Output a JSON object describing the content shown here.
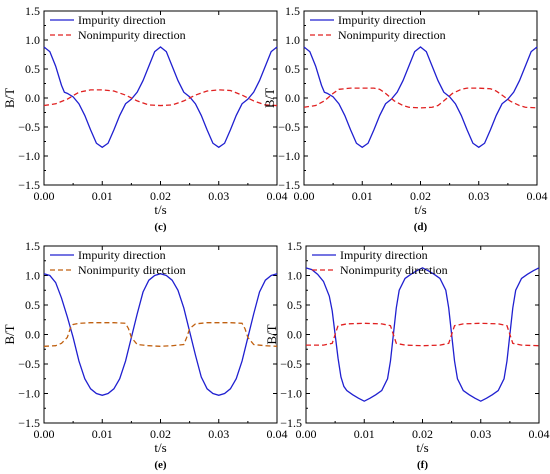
{
  "chart_data": [
    {
      "panel": "(c)",
      "type": "line",
      "xlabel": "t/s",
      "ylabel": "B/T",
      "xlim": [
        0,
        0.04
      ],
      "ylim": [
        -1.5,
        1.5
      ],
      "xticks": [
        "0.00",
        "0.01",
        "0.02",
        "0.03",
        "0.04"
      ],
      "yticks": [
        "-1.5",
        "-1.0",
        "-0.5",
        "0.0",
        "0.5",
        "1.0",
        "1.5"
      ],
      "legend_position": "top-left",
      "series": [
        {
          "name": "Impurity direction",
          "color": "#2020d0",
          "dash": "solid",
          "x": [
            0,
            0.001,
            0.002,
            0.003,
            0.0035,
            0.004,
            0.005,
            0.006,
            0.007,
            0.008,
            0.009,
            0.01,
            0.011,
            0.012,
            0.013,
            0.014,
            0.015,
            0.016,
            0.017,
            0.018,
            0.019,
            0.02,
            0.021,
            0.022,
            0.023,
            0.024,
            0.025,
            0.026,
            0.027,
            0.028,
            0.029,
            0.03,
            0.031,
            0.032,
            0.033,
            0.034,
            0.035,
            0.036,
            0.037,
            0.038,
            0.039,
            0.04
          ],
          "y": [
            0.88,
            0.8,
            0.55,
            0.22,
            0.1,
            0.08,
            0.02,
            -0.1,
            -0.3,
            -0.55,
            -0.78,
            -0.85,
            -0.78,
            -0.55,
            -0.3,
            -0.1,
            -0.02,
            0.1,
            0.3,
            0.55,
            0.8,
            0.88,
            0.8,
            0.55,
            0.3,
            0.1,
            0.02,
            -0.1,
            -0.3,
            -0.55,
            -0.78,
            -0.85,
            -0.78,
            -0.55,
            -0.3,
            -0.1,
            -0.02,
            0.1,
            0.3,
            0.55,
            0.8,
            0.88
          ]
        },
        {
          "name": "Nonimpurity direction",
          "color": "#e02020",
          "dash": "dashed",
          "x": [
            0,
            0.002,
            0.004,
            0.006,
            0.008,
            0.01,
            0.012,
            0.014,
            0.016,
            0.018,
            0.02,
            0.022,
            0.024,
            0.026,
            0.028,
            0.03,
            0.032,
            0.034,
            0.036,
            0.038,
            0.04
          ],
          "y": [
            -0.13,
            -0.1,
            -0.02,
            0.1,
            0.14,
            0.14,
            0.12,
            0.05,
            -0.05,
            -0.12,
            -0.13,
            -0.12,
            -0.05,
            0.05,
            0.12,
            0.14,
            0.13,
            0.05,
            -0.05,
            -0.12,
            -0.13
          ]
        }
      ]
    },
    {
      "panel": "(d)",
      "type": "line",
      "xlabel": "t/s",
      "ylabel": "B/T",
      "xlim": [
        0,
        0.04
      ],
      "ylim": [
        -1.5,
        1.5
      ],
      "xticks": [
        "0.00",
        "0.01",
        "0.02",
        "0.03",
        "0.04"
      ],
      "yticks": [
        "-1.5",
        "-1.0",
        "-0.5",
        "0.0",
        "0.5",
        "1.0",
        "1.5"
      ],
      "legend_position": "top-left",
      "series": [
        {
          "name": "Impurity direction",
          "color": "#2020d0",
          "dash": "solid",
          "x": [
            0,
            0.001,
            0.002,
            0.003,
            0.0035,
            0.004,
            0.005,
            0.006,
            0.007,
            0.008,
            0.009,
            0.01,
            0.011,
            0.012,
            0.013,
            0.014,
            0.015,
            0.016,
            0.017,
            0.018,
            0.019,
            0.02,
            0.021,
            0.022,
            0.023,
            0.024,
            0.025,
            0.026,
            0.027,
            0.028,
            0.029,
            0.03,
            0.031,
            0.032,
            0.033,
            0.034,
            0.035,
            0.036,
            0.037,
            0.038,
            0.039,
            0.04
          ],
          "y": [
            0.88,
            0.8,
            0.55,
            0.22,
            0.1,
            0.08,
            0.02,
            -0.1,
            -0.3,
            -0.55,
            -0.78,
            -0.85,
            -0.78,
            -0.55,
            -0.3,
            -0.1,
            -0.02,
            0.1,
            0.3,
            0.55,
            0.8,
            0.88,
            0.8,
            0.55,
            0.3,
            0.1,
            0.02,
            -0.1,
            -0.3,
            -0.55,
            -0.78,
            -0.85,
            -0.78,
            -0.55,
            -0.3,
            -0.1,
            -0.02,
            0.1,
            0.3,
            0.55,
            0.8,
            0.88
          ]
        },
        {
          "name": "Nonimpurity direction",
          "color": "#e02020",
          "dash": "dashed",
          "x": [
            0,
            0.002,
            0.0035,
            0.005,
            0.006,
            0.008,
            0.01,
            0.012,
            0.013,
            0.014,
            0.0155,
            0.017,
            0.018,
            0.02,
            0.022,
            0.023,
            0.024,
            0.0255,
            0.027,
            0.028,
            0.03,
            0.032,
            0.033,
            0.034,
            0.0355,
            0.037,
            0.038,
            0.04
          ],
          "y": [
            -0.16,
            -0.13,
            -0.05,
            0.08,
            0.15,
            0.17,
            0.17,
            0.17,
            0.15,
            0.08,
            -0.05,
            -0.13,
            -0.16,
            -0.17,
            -0.16,
            -0.13,
            -0.05,
            0.08,
            0.15,
            0.17,
            0.17,
            0.16,
            0.12,
            0.05,
            -0.06,
            -0.13,
            -0.16,
            -0.17
          ]
        }
      ]
    },
    {
      "panel": "(e)",
      "type": "line",
      "xlabel": "t/s",
      "ylabel": "B/T",
      "xlim": [
        0,
        0.04
      ],
      "ylim": [
        -1.5,
        1.5
      ],
      "xticks": [
        "0.00",
        "0.01",
        "0.02",
        "0.03",
        "0.04"
      ],
      "yticks": [
        "-1.5",
        "-1.0",
        "-0.5",
        "0.0",
        "0.5",
        "1.0",
        "1.5"
      ],
      "legend_position": "top-left",
      "series": [
        {
          "name": "Impurity direction",
          "color": "#2020d0",
          "dash": "solid",
          "x": [
            0,
            0.001,
            0.002,
            0.003,
            0.004,
            0.005,
            0.006,
            0.007,
            0.008,
            0.009,
            0.01,
            0.011,
            0.012,
            0.013,
            0.014,
            0.015,
            0.016,
            0.017,
            0.018,
            0.019,
            0.02,
            0.021,
            0.022,
            0.023,
            0.024,
            0.025,
            0.026,
            0.027,
            0.028,
            0.029,
            0.03,
            0.031,
            0.032,
            0.033,
            0.034,
            0.035,
            0.036,
            0.037,
            0.038,
            0.039,
            0.04
          ],
          "y": [
            1.03,
            1.0,
            0.88,
            0.62,
            0.3,
            -0.05,
            -0.45,
            -0.75,
            -0.92,
            -1.0,
            -1.03,
            -1.0,
            -0.92,
            -0.75,
            -0.45,
            -0.05,
            0.35,
            0.72,
            0.92,
            1.0,
            1.03,
            1.0,
            0.92,
            0.75,
            0.45,
            0.05,
            -0.35,
            -0.72,
            -0.92,
            -1.0,
            -1.03,
            -1.0,
            -0.92,
            -0.75,
            -0.45,
            -0.05,
            0.35,
            0.72,
            0.92,
            1.0,
            1.03
          ]
        },
        {
          "name": "Nonimpurity direction",
          "color": "#c06010",
          "dash": "dashed",
          "x": [
            0,
            0.002,
            0.003,
            0.004,
            0.0045,
            0.005,
            0.006,
            0.008,
            0.01,
            0.012,
            0.014,
            0.0145,
            0.015,
            0.016,
            0.018,
            0.02,
            0.022,
            0.024,
            0.0245,
            0.025,
            0.026,
            0.028,
            0.03,
            0.032,
            0.034,
            0.0345,
            0.035,
            0.036,
            0.038,
            0.04
          ],
          "y": [
            -0.2,
            -0.19,
            -0.15,
            -0.05,
            0.1,
            0.17,
            0.19,
            0.2,
            0.2,
            0.2,
            0.19,
            0.1,
            -0.05,
            -0.17,
            -0.19,
            -0.2,
            -0.19,
            -0.17,
            -0.05,
            0.1,
            0.18,
            0.2,
            0.2,
            0.2,
            0.19,
            0.1,
            -0.05,
            -0.17,
            -0.19,
            -0.2
          ]
        }
      ]
    },
    {
      "panel": "(f)",
      "type": "line",
      "xlabel": "t/s",
      "ylabel": "B/T",
      "xlim": [
        0,
        0.04
      ],
      "ylim": [
        -1.5,
        1.5
      ],
      "xticks": [
        "0.00",
        "0.01",
        "0.02",
        "0.03",
        "0.04"
      ],
      "yticks": [
        "-1.5",
        "-1.0",
        "-0.5",
        "0.0",
        "0.5",
        "1.0",
        "1.5"
      ],
      "legend_position": "top-left",
      "series": [
        {
          "name": "Impurity direction",
          "color": "#2020d0",
          "dash": "solid",
          "x": [
            0,
            0.001,
            0.002,
            0.003,
            0.004,
            0.0045,
            0.005,
            0.0055,
            0.006,
            0.0065,
            0.007,
            0.008,
            0.009,
            0.01,
            0.011,
            0.012,
            0.013,
            0.014,
            0.0145,
            0.015,
            0.0155,
            0.016,
            0.017,
            0.018,
            0.019,
            0.02,
            0.021,
            0.022,
            0.023,
            0.024,
            0.0245,
            0.025,
            0.0255,
            0.026,
            0.027,
            0.028,
            0.029,
            0.03,
            0.031,
            0.032,
            0.033,
            0.034,
            0.0345,
            0.035,
            0.0355,
            0.036,
            0.037,
            0.038,
            0.039,
            0.04
          ],
          "y": [
            1.13,
            1.1,
            1.02,
            0.9,
            0.65,
            0.4,
            0.0,
            -0.4,
            -0.72,
            -0.88,
            -0.95,
            -1.02,
            -1.08,
            -1.13,
            -1.08,
            -1.02,
            -0.95,
            -0.75,
            -0.45,
            0.0,
            0.45,
            0.75,
            0.95,
            1.02,
            1.08,
            1.13,
            1.08,
            1.02,
            0.95,
            0.75,
            0.45,
            0.0,
            -0.45,
            -0.75,
            -0.95,
            -1.02,
            -1.08,
            -1.13,
            -1.08,
            -1.02,
            -0.95,
            -0.75,
            -0.45,
            0.0,
            0.45,
            0.75,
            0.95,
            1.02,
            1.08,
            1.13
          ]
        },
        {
          "name": "Nonimpurity direction",
          "color": "#e02020",
          "dash": "dashed",
          "x": [
            0,
            0.003,
            0.0045,
            0.005,
            0.0055,
            0.007,
            0.01,
            0.013,
            0.0145,
            0.015,
            0.0155,
            0.017,
            0.02,
            0.023,
            0.0245,
            0.025,
            0.0255,
            0.027,
            0.03,
            0.033,
            0.0345,
            0.035,
            0.0355,
            0.037,
            0.04
          ],
          "y": [
            -0.18,
            -0.18,
            -0.15,
            0.0,
            0.15,
            0.18,
            0.19,
            0.18,
            0.15,
            0.0,
            -0.15,
            -0.18,
            -0.19,
            -0.18,
            -0.15,
            0.0,
            0.15,
            0.18,
            0.19,
            0.18,
            0.15,
            0.0,
            -0.15,
            -0.18,
            -0.19
          ]
        }
      ]
    }
  ]
}
